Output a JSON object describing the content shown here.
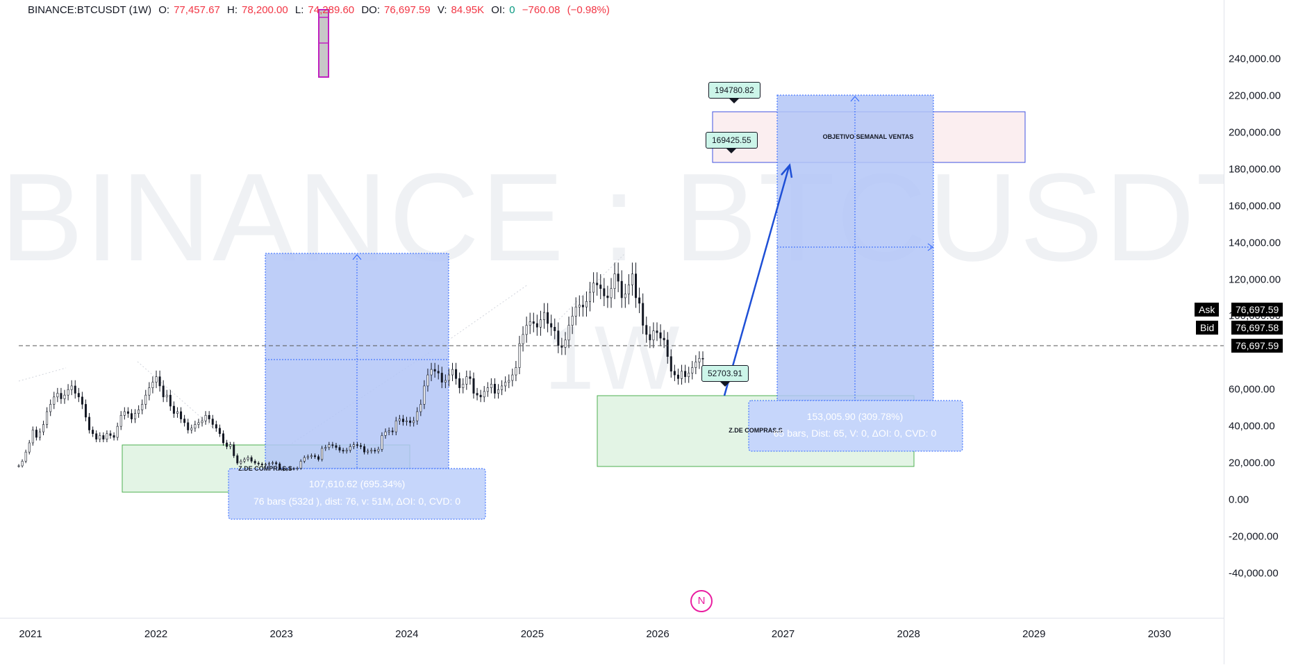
{
  "legend": {
    "symbol": "BINANCE:BTCUSDT (1W)",
    "o_label": "O:",
    "o": "77,457.67",
    "h_label": "H:",
    "h": "78,200.00",
    "l_label": "L:",
    "l": "74,289.60",
    "do_label": "DO:",
    "do": "76,697.59",
    "v_label": "V:",
    "v": "84.95K",
    "oi_label": "OI:",
    "oi": "0",
    "change": "−760.08",
    "change_pct": "(−0.98%)"
  },
  "watermark": {
    "main": "BINANCE : BTCUSDT",
    "sub": "1W"
  },
  "y_axis": {
    "ticks": [
      "240,000.00",
      "220,000.00",
      "200,000.00",
      "180,000.00",
      "160,000.00",
      "140,000.00",
      "120,000.00",
      "100,000.00",
      "60,000.00",
      "40,000.00",
      "20,000.00",
      "0.00",
      "-20,000.00",
      "-40,000.00"
    ],
    "values": [
      240000,
      220000,
      200000,
      180000,
      160000,
      140000,
      120000,
      100000,
      60000,
      40000,
      20000,
      0,
      -20000,
      -40000
    ]
  },
  "x_axis": {
    "ticks": [
      "2021",
      "2022",
      "2023",
      "2024",
      "2025",
      "2026",
      "2027",
      "2028",
      "2029",
      "2030"
    ]
  },
  "price_tags": {
    "ask_label": "Ask",
    "ask": "76,697.59",
    "bid_label": "Bid",
    "bid": "76,697.58",
    "last": "76,697.59"
  },
  "callouts": {
    "c1": "194780.82",
    "c2": "169425.55",
    "c3": "52703.91"
  },
  "zones": {
    "objetivo": "OBJETIVO SEMANAL VENTAS",
    "compras1": "Z.DE COMPRAS.S",
    "compras2": "Z.DE COMPRAS.S"
  },
  "stats": {
    "s1_line1": "107,610.62 (695.34%)",
    "s1_line2": "76 bars (532d ), dist: 76, v: 51M, ΔOI: 0, CVD: 0",
    "s2_line1": "153,005.90 (309.78%)",
    "s2_line2": "65 bars,  Dist: 65, V: 0, ΔOI: 0, CVD: 0"
  },
  "badge": "N",
  "colors": {
    "candle": "#131722",
    "blue_fill": "#b3c6f7",
    "blue_line": "#2962ff",
    "green_fill": "#e3f4e5",
    "green_line": "#4caf50",
    "pink_fill": "#fbeef0",
    "arrow": "#1e4fd6",
    "magenta": "#c020c0"
  },
  "candle_closes": [
    18500,
    21000,
    26000,
    31000,
    38000,
    34000,
    37000,
    41000,
    48000,
    52000,
    56000,
    58000,
    55000,
    57000,
    60000,
    62000,
    58000,
    56000,
    52000,
    45000,
    38000,
    36000,
    33000,
    35000,
    33000,
    36000,
    35000,
    34000,
    40000,
    46000,
    48000,
    47000,
    44000,
    47000,
    49000,
    52000,
    57000,
    61000,
    64000,
    67000,
    62000,
    56000,
    57000,
    51000,
    47000,
    48000,
    44000,
    42000,
    38000,
    39000,
    41000,
    42000,
    43000,
    46000,
    44000,
    41000,
    39000,
    36000,
    31000,
    29000,
    30000,
    24000,
    20000,
    21000,
    22000,
    23000,
    21000,
    20000,
    19500,
    19000,
    19300,
    19800,
    20200,
    19600,
    16800,
    16500,
    16700,
    17000,
    16800,
    17200,
    21000,
    23000,
    23500,
    24000,
    23500,
    22000,
    28000,
    28500,
    30000,
    29500,
    28500,
    27000,
    26500,
    27000,
    29000,
    30000,
    29500,
    29000,
    26000,
    26500,
    27000,
    26500,
    27500,
    35000,
    37000,
    37500,
    37000,
    43000,
    44000,
    42500,
    43000,
    42000,
    43000,
    48000,
    52000,
    62000,
    68000,
    71000,
    70000,
    69000,
    64000,
    65000,
    68000,
    71000,
    66000,
    61000,
    63000,
    67000,
    66000,
    58000,
    57000,
    56000,
    59000,
    61000,
    63000,
    58000,
    60000,
    62000,
    64000,
    65000,
    68000,
    72000,
    85000,
    90000,
    95000,
    97000,
    96000,
    94000,
    98000,
    102000,
    96000,
    94000,
    92000,
    84000,
    83000,
    87000,
    95000,
    100000,
    105000,
    106000,
    105000,
    108000,
    113000,
    118000,
    117000,
    115000,
    111000,
    110000,
    115000,
    123000,
    119000,
    110000,
    112000,
    117000,
    123000,
    110000,
    107000,
    95000,
    90000,
    87000,
    92000,
    91000,
    88000,
    87000,
    78000,
    70000,
    68000,
    66000,
    70000,
    67000,
    69000,
    72000,
    75000,
    77000,
    76697
  ]
}
